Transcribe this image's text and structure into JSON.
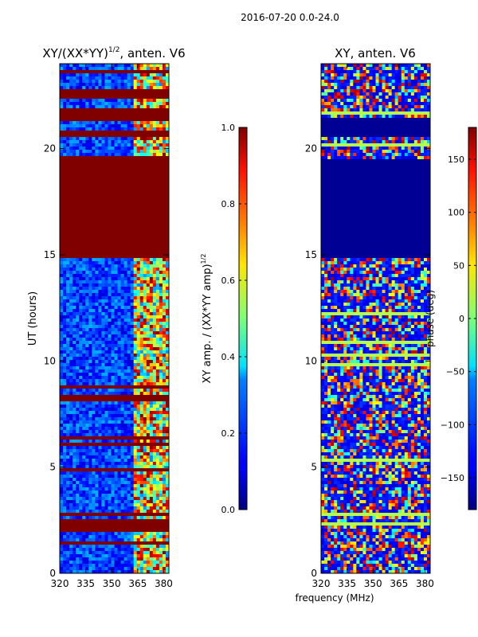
{
  "suptitle": "2016-07-20 0.0-24.0",
  "chart_data": [
    {
      "type": "heatmap",
      "title_main": "XY/(XX*YY)",
      "title_exp": "1/2",
      "title_tail": ", anten. V6",
      "xlabel": "",
      "ylabel": "UT (hours)",
      "xlim": [
        320,
        383
      ],
      "ylim": [
        0,
        24
      ],
      "xticks": [
        320,
        335,
        350,
        365,
        380
      ],
      "yticks": [
        0,
        5,
        10,
        15,
        20
      ],
      "grid": false,
      "colormap": "jet",
      "colorbar": {
        "label_main": "XY amp. / (XX*YY amp)",
        "label_exp": "1/2",
        "range": [
          0.0,
          1.0
        ],
        "ticks": [
          "0.0",
          "0.2",
          "0.4",
          "0.6",
          "0.8",
          "1.0"
        ],
        "tick_values": [
          0.0,
          0.2,
          0.4,
          0.6,
          0.8,
          1.0
        ]
      },
      "saturated_blocks_ut": [
        [
          14.8,
          19.7
        ],
        [
          20.5,
          20.9
        ],
        [
          21.3,
          21.95
        ],
        [
          22.55,
          22.75
        ],
        [
          2.0,
          2.3
        ],
        [
          1.35,
          1.55
        ]
      ],
      "bright_band_freq_mhz": [
        362,
        382
      ]
    },
    {
      "type": "heatmap",
      "title": "XY, anten. V6",
      "xlabel": "frequency (MHz)",
      "ylabel": "",
      "xlim": [
        320,
        383
      ],
      "ylim": [
        0,
        24
      ],
      "xticks": [
        320,
        335,
        350,
        365,
        380
      ],
      "yticks": [
        0,
        5,
        10,
        15,
        20
      ],
      "grid": false,
      "colormap": "jet",
      "colorbar": {
        "label": "phase (deg)",
        "range": [
          -180,
          180
        ],
        "ticks": [
          "−150",
          "−100",
          "−50",
          "0",
          "50",
          "100",
          "150"
        ],
        "tick_values": [
          -150,
          -100,
          -50,
          0,
          50,
          100,
          150
        ]
      },
      "flat_blocks_ut": [
        [
          14.8,
          19.5
        ],
        [
          20.6,
          21.4
        ]
      ],
      "cyan_lines_ut": [
        21.6,
        20.2,
        12.3,
        10.9,
        10.3,
        9.8,
        5.4,
        2.8,
        2.3
      ]
    }
  ]
}
